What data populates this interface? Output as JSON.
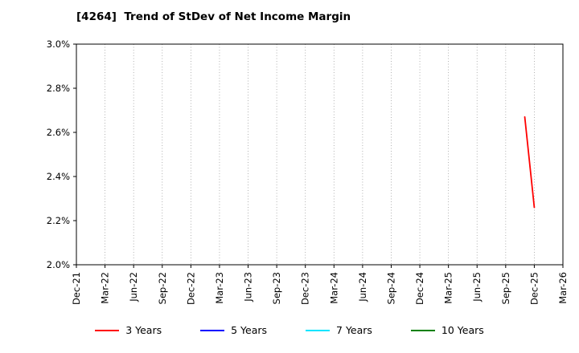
{
  "title": "[4264]  Trend of StDev of Net Income Margin",
  "chart_data": {
    "type": "line",
    "title": "[4264]  Trend of StDev of Net Income Margin",
    "xlabel": "",
    "ylabel": "",
    "ylim": [
      2.0,
      3.0
    ],
    "grid": "vertical-dotted",
    "legend_position": "bottom",
    "y_tick_values": [
      3.0,
      2.8,
      2.6,
      2.4,
      2.2,
      2.0
    ],
    "y_tick_labels": [
      "3.0%",
      "2.8%",
      "2.6%",
      "2.4%",
      "2.2%",
      "2.0%"
    ],
    "x_tick_labels": [
      "Dec-21",
      "Mar-22",
      "Jun-22",
      "Sep-22",
      "Dec-22",
      "Mar-23",
      "Jun-23",
      "Sep-23",
      "Dec-23",
      "Mar-24",
      "Jun-24",
      "Sep-24",
      "Dec-24",
      "Mar-25",
      "Jun-25",
      "Sep-25",
      "Dec-25",
      "Mar-26"
    ],
    "series": [
      {
        "name": "3 Years",
        "color": "#ff0000",
        "points": [
          {
            "x": "Nov-25",
            "y": 2.67
          },
          {
            "x": "Dec-25",
            "y": 2.26
          }
        ]
      },
      {
        "name": "5 Years",
        "color": "#0000ff",
        "points": []
      },
      {
        "name": "7 Years",
        "color": "#00e5ff",
        "points": []
      },
      {
        "name": "10 Years",
        "color": "#008000",
        "points": []
      }
    ]
  }
}
